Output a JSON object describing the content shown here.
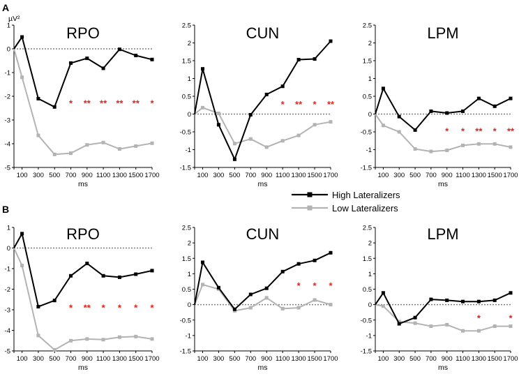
{
  "figure": {
    "panel_letters": [
      "A",
      "B"
    ],
    "legend": {
      "high_label": "High Lateralizers",
      "low_label": "Low Lateralizers"
    },
    "colors": {
      "high": "#000000",
      "low": "#b3b3b3",
      "significance": "#e8231b",
      "baseline": "#808080"
    }
  },
  "chart_data": [
    {
      "type": "line",
      "panel": "A",
      "title": "RPO",
      "xlabel": "ms",
      "ylabel": "µV²",
      "x": [
        0,
        100,
        300,
        500,
        700,
        900,
        1100,
        1300,
        1500,
        1700
      ],
      "xticks": [
        "100",
        "300",
        "500",
        "700",
        "900",
        "1100",
        "1300",
        "1500",
        "1700"
      ],
      "ylim": [
        -5,
        1
      ],
      "yticks": [
        1,
        0,
        -1,
        -2,
        -3,
        -4,
        -5
      ],
      "yticklabels": [
        "1",
        "0",
        "-1",
        "-2",
        "-3",
        "-4",
        "-5"
      ],
      "series": [
        {
          "name": "High Lateralizers",
          "values": [
            0,
            0.5,
            -2.1,
            -2.45,
            -0.6,
            -0.4,
            -0.82,
            -0.02,
            -0.28,
            -0.45
          ]
        },
        {
          "name": "Low Lateralizers",
          "values": [
            0,
            -1.2,
            -3.65,
            -4.45,
            -4.4,
            -4.05,
            -3.95,
            -4.22,
            -4.1,
            -3.98
          ]
        }
      ],
      "significance": [
        {
          "x": 700,
          "label": "*"
        },
        {
          "x": 900,
          "label": "**"
        },
        {
          "x": 1100,
          "label": "**"
        },
        {
          "x": 1300,
          "label": "**"
        },
        {
          "x": 1500,
          "label": "**"
        },
        {
          "x": 1700,
          "label": "*"
        }
      ],
      "significance_y": -2.25
    },
    {
      "type": "line",
      "panel": "A",
      "title": "CUN",
      "xlabel": "ms",
      "ylabel": "",
      "x": [
        0,
        100,
        300,
        500,
        700,
        900,
        1100,
        1300,
        1500,
        1700
      ],
      "xticks": [
        "100",
        "300",
        "500",
        "700",
        "900",
        "1100",
        "1300",
        "1500",
        "1700"
      ],
      "ylim": [
        -1.5,
        2.5
      ],
      "yticks": [
        2.5,
        2,
        1.5,
        1,
        0.5,
        0,
        -0.5,
        -1,
        -1.5
      ],
      "yticklabels": [
        "2.5",
        "2",
        "1.5",
        "1",
        "0.5",
        "0",
        "-0.5",
        "-1",
        "-1.5"
      ],
      "series": [
        {
          "name": "High Lateralizers",
          "values": [
            0,
            1.27,
            -0.3,
            -1.27,
            -0.02,
            0.55,
            0.78,
            1.53,
            1.55,
            2.05
          ]
        },
        {
          "name": "Low Lateralizers",
          "values": [
            0,
            0.18,
            0.02,
            -0.83,
            -0.7,
            -0.93,
            -0.75,
            -0.6,
            -0.3,
            -0.22
          ]
        }
      ],
      "significance": [
        {
          "x": 1100,
          "label": "*"
        },
        {
          "x": 1300,
          "label": "**"
        },
        {
          "x": 1500,
          "label": "*"
        },
        {
          "x": 1700,
          "label": "**"
        }
      ],
      "significance_y": 0.3
    },
    {
      "type": "line",
      "panel": "A",
      "title": "LPM",
      "xlabel": "ms",
      "ylabel": "",
      "x": [
        0,
        100,
        300,
        500,
        700,
        900,
        1100,
        1300,
        1500,
        1700
      ],
      "xticks": [
        "100",
        "300",
        "500",
        "700",
        "900",
        "1100",
        "1300",
        "1500",
        "1700"
      ],
      "ylim": [
        -1.5,
        2.5
      ],
      "yticks": [
        2.5,
        2,
        1.5,
        1,
        0.5,
        0,
        -0.5,
        -1,
        -1.5
      ],
      "yticklabels": [
        "2.5",
        "2",
        "1.5",
        "1",
        "0.5",
        "0",
        "-0.5",
        "-1",
        "-1.5"
      ],
      "series": [
        {
          "name": "High Lateralizers",
          "values": [
            0,
            0.72,
            -0.07,
            -0.45,
            0.08,
            0.03,
            0.08,
            0.44,
            0.22,
            0.44
          ]
        },
        {
          "name": "Low Lateralizers",
          "values": [
            0,
            -0.32,
            -0.5,
            -0.98,
            -1.05,
            -1.02,
            -0.88,
            -0.84,
            -0.84,
            -0.93
          ]
        }
      ],
      "significance": [
        {
          "x": 900,
          "label": "*"
        },
        {
          "x": 1100,
          "label": "*"
        },
        {
          "x": 1300,
          "label": "**"
        },
        {
          "x": 1500,
          "label": "*"
        },
        {
          "x": 1700,
          "label": "**"
        }
      ],
      "significance_y": -0.45
    },
    {
      "type": "line",
      "panel": "B",
      "title": "RPO",
      "xlabel": "ms",
      "ylabel": "",
      "x": [
        0,
        100,
        300,
        500,
        700,
        900,
        1100,
        1300,
        1500,
        1700
      ],
      "xticks": [
        "100",
        "300",
        "500",
        "700",
        "900",
        "1100",
        "1300",
        "1500",
        "1700"
      ],
      "ylim": [
        -5,
        1
      ],
      "yticks": [
        1,
        0,
        -1,
        -2,
        -3,
        -4,
        -5
      ],
      "yticklabels": [
        "1",
        "0",
        "-1",
        "-2",
        "-3",
        "-4",
        "-5"
      ],
      "series": [
        {
          "name": "High Lateralizers",
          "values": [
            0,
            0.7,
            -2.85,
            -2.55,
            -1.35,
            -0.75,
            -1.35,
            -1.42,
            -1.27,
            -1.1
          ]
        },
        {
          "name": "Low Lateralizers",
          "values": [
            0,
            -0.85,
            -4.25,
            -4.95,
            -4.5,
            -4.42,
            -4.45,
            -4.33,
            -4.3,
            -4.42
          ]
        }
      ],
      "significance": [
        {
          "x": 700,
          "label": "*"
        },
        {
          "x": 900,
          "label": "**"
        },
        {
          "x": 1100,
          "label": "*"
        },
        {
          "x": 1300,
          "label": "*"
        },
        {
          "x": 1500,
          "label": "*"
        },
        {
          "x": 1700,
          "label": "*"
        }
      ],
      "significance_y": -2.85
    },
    {
      "type": "line",
      "panel": "B",
      "title": "CUN",
      "xlabel": "ms",
      "ylabel": "",
      "x": [
        0,
        100,
        300,
        500,
        700,
        900,
        1100,
        1300,
        1500,
        1700
      ],
      "xticks": [
        "100",
        "300",
        "500",
        "700",
        "900",
        "1100",
        "1300",
        "1500",
        "1700"
      ],
      "ylim": [
        -1.5,
        2.5
      ],
      "yticks": [
        2.5,
        2,
        1.5,
        1,
        0.5,
        0,
        -0.5,
        -1,
        -1.5
      ],
      "yticklabels": [
        "2.5",
        "2",
        "1.5",
        "1",
        "0.5",
        "0",
        "-0.5",
        "-1",
        "-1.5"
      ],
      "series": [
        {
          "name": "High Lateralizers",
          "values": [
            0,
            1.37,
            0.55,
            -0.15,
            0.33,
            0.53,
            1.07,
            1.32,
            1.43,
            1.68
          ]
        },
        {
          "name": "Low Lateralizers",
          "values": [
            0,
            0.65,
            0.5,
            -0.2,
            -0.1,
            0.22,
            -0.13,
            -0.1,
            0.15,
            0.0
          ]
        }
      ],
      "significance": [
        {
          "x": 1300,
          "label": "*"
        },
        {
          "x": 1500,
          "label": "*"
        },
        {
          "x": 1700,
          "label": "*"
        }
      ],
      "significance_y": 0.65
    },
    {
      "type": "line",
      "panel": "B",
      "title": "LPM",
      "xlabel": "ms",
      "ylabel": "",
      "x": [
        0,
        100,
        300,
        500,
        700,
        900,
        1100,
        1300,
        1500,
        1700
      ],
      "xticks": [
        "100",
        "300",
        "500",
        "700",
        "900",
        "1100",
        "1300",
        "1500",
        "1700"
      ],
      "ylim": [
        -1.5,
        2.5
      ],
      "yticks": [
        2.5,
        2,
        1.5,
        1,
        0.5,
        0,
        -0.5,
        -1,
        -1.5
      ],
      "yticklabels": [
        "2.5",
        "2",
        "1.5",
        "1",
        "0.5",
        "0",
        "-0.5",
        "-1",
        "-1.5"
      ],
      "series": [
        {
          "name": "High Lateralizers",
          "values": [
            0,
            0.38,
            -0.62,
            -0.42,
            0.17,
            0.14,
            0.1,
            0.1,
            0.14,
            0.38
          ]
        },
        {
          "name": "Low Lateralizers",
          "values": [
            0,
            -0.05,
            -0.55,
            -0.6,
            -0.7,
            -0.65,
            -0.85,
            -0.85,
            -0.7,
            -0.7
          ]
        }
      ],
      "significance": [
        {
          "x": 1300,
          "label": "*"
        },
        {
          "x": 1700,
          "label": "*"
        }
      ],
      "significance_y": -0.4
    }
  ]
}
